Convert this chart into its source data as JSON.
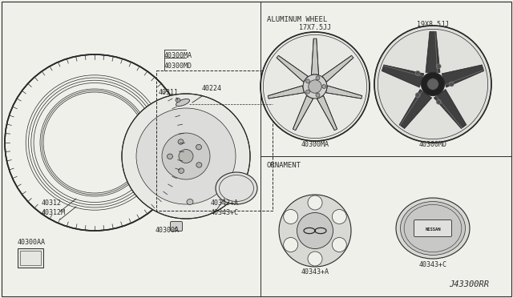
{
  "bg_color": "#f0f0eb",
  "line_color": "#2a2a2a",
  "aluminum_wheel_label": "ALUMINUM WHEEL",
  "ornament_label": "ORNAMENT",
  "wheel_labels": [
    "17X7.5JJ",
    "19X8.5JJ"
  ],
  "wheel_part_numbers": [
    "40300MA",
    "40300MD"
  ],
  "diagram_ref": "J43300RR",
  "part_labels": {
    "tire": "40312\n40312M",
    "wheel_asm": "40300MA\n40300MD",
    "valve": "40311",
    "valve2": "40224",
    "wheel": "40300A",
    "cap": "40343+A\n40343+C",
    "small_box": "40300AA",
    "orn1": "40343+A",
    "orn2": "40343+C"
  }
}
